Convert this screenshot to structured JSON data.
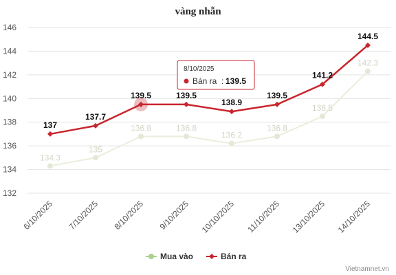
{
  "chart_data": {
    "type": "line",
    "title": "vàng nhẫn",
    "categories": [
      "6/10/2025",
      "7/10/2025",
      "8/10/2025",
      "9/10/2025",
      "10/10/2025",
      "11/10/2025",
      "13/10/2025",
      "14/10/2025"
    ],
    "series": [
      {
        "name": "Mua vào",
        "color": "#a9d18e",
        "values": [
          134.3,
          135,
          136.8,
          136.8,
          136.2,
          136.8,
          138.5,
          142.3
        ]
      },
      {
        "name": "Bán ra",
        "color": "#c8262e",
        "values": [
          137,
          137.7,
          139.5,
          139.5,
          138.9,
          139.5,
          141.2,
          144.5
        ]
      }
    ],
    "y_ticks": [
      132,
      134,
      136,
      138,
      140,
      142,
      144,
      146
    ],
    "ylim": [
      132,
      146
    ],
    "grid": true,
    "legend_position": "bottom-center",
    "tooltip": {
      "date": "8/10/2025",
      "series": "Bán ra",
      "value": "139.5"
    }
  },
  "credits": "Vietnamnet.vn"
}
